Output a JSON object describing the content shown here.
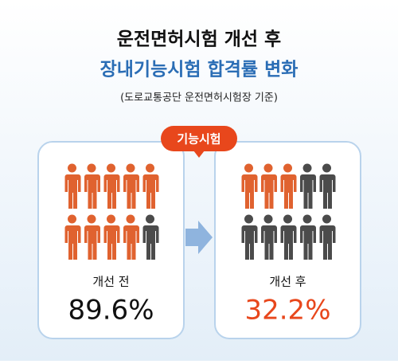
{
  "chart_data": {
    "type": "pictogram",
    "title": [
      "운전면허시험 개선 후",
      "장내기능시험 합격률 변화"
    ],
    "subtitle": "(도로교통공단 운전면허시험장 기준)",
    "annotation": "기능시험",
    "categories": [
      "개선 전",
      "개선 후"
    ],
    "values": [
      89.6,
      32.2
    ],
    "value_labels": [
      "89.6%",
      "32.2%"
    ],
    "value_colors": [
      "#111111",
      "#e8471c"
    ],
    "color": "#e0622f",
    "rest_color": "#4b4b4b"
  }
}
